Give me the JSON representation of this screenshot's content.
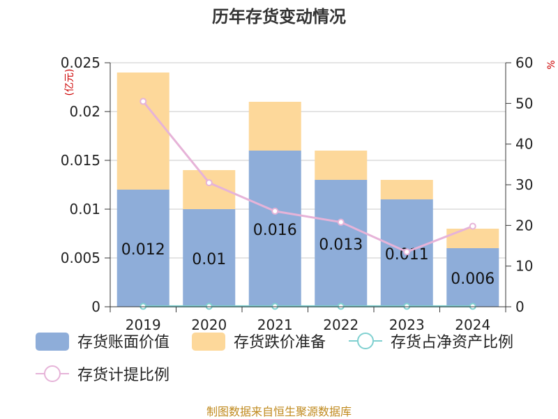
{
  "chart_data": {
    "type": "bar",
    "title": "历年存货变动情况",
    "left_unit_label": "(亿元)",
    "right_unit_label": "%",
    "categories": [
      "2019",
      "2020",
      "2021",
      "2022",
      "2023",
      "2024"
    ],
    "y_left": {
      "ylim": [
        0,
        0.025
      ],
      "ticks": [
        "0",
        "0.005",
        "0.01",
        "0.015",
        "0.02",
        "0.025"
      ]
    },
    "y_right": {
      "ylim": [
        0,
        60
      ],
      "ticks": [
        "0",
        "10",
        "20",
        "30",
        "40",
        "50",
        "60"
      ]
    },
    "series": [
      {
        "name": "存货账面价值",
        "type": "bar",
        "axis": "left",
        "stack": "inv",
        "values": [
          0.012,
          0.01,
          0.016,
          0.013,
          0.011,
          0.006
        ],
        "labels": [
          "0.012",
          "0.01",
          "0.016",
          "0.013",
          "0.011",
          "0.006"
        ],
        "color": "#8eadd9"
      },
      {
        "name": "存货跌价准备",
        "type": "bar",
        "axis": "left",
        "stack": "inv",
        "values": [
          0.012,
          0.004,
          0.005,
          0.003,
          0.002,
          0.002
        ],
        "color": "#fdd89a"
      },
      {
        "name": "存货占净资产比例",
        "type": "line",
        "axis": "right",
        "values": [
          0.1,
          0.1,
          0.1,
          0.1,
          0.1,
          0.1
        ],
        "color": "#7fd0d0"
      },
      {
        "name": "存货计提比例",
        "type": "line",
        "axis": "right",
        "values": [
          50.5,
          30.5,
          23.5,
          20.8,
          13.5,
          19.8
        ],
        "color": "#e6b3d8"
      }
    ],
    "grid": true,
    "legend_position": "bottom"
  },
  "footer": "制图数据来自恒生聚源数据库"
}
